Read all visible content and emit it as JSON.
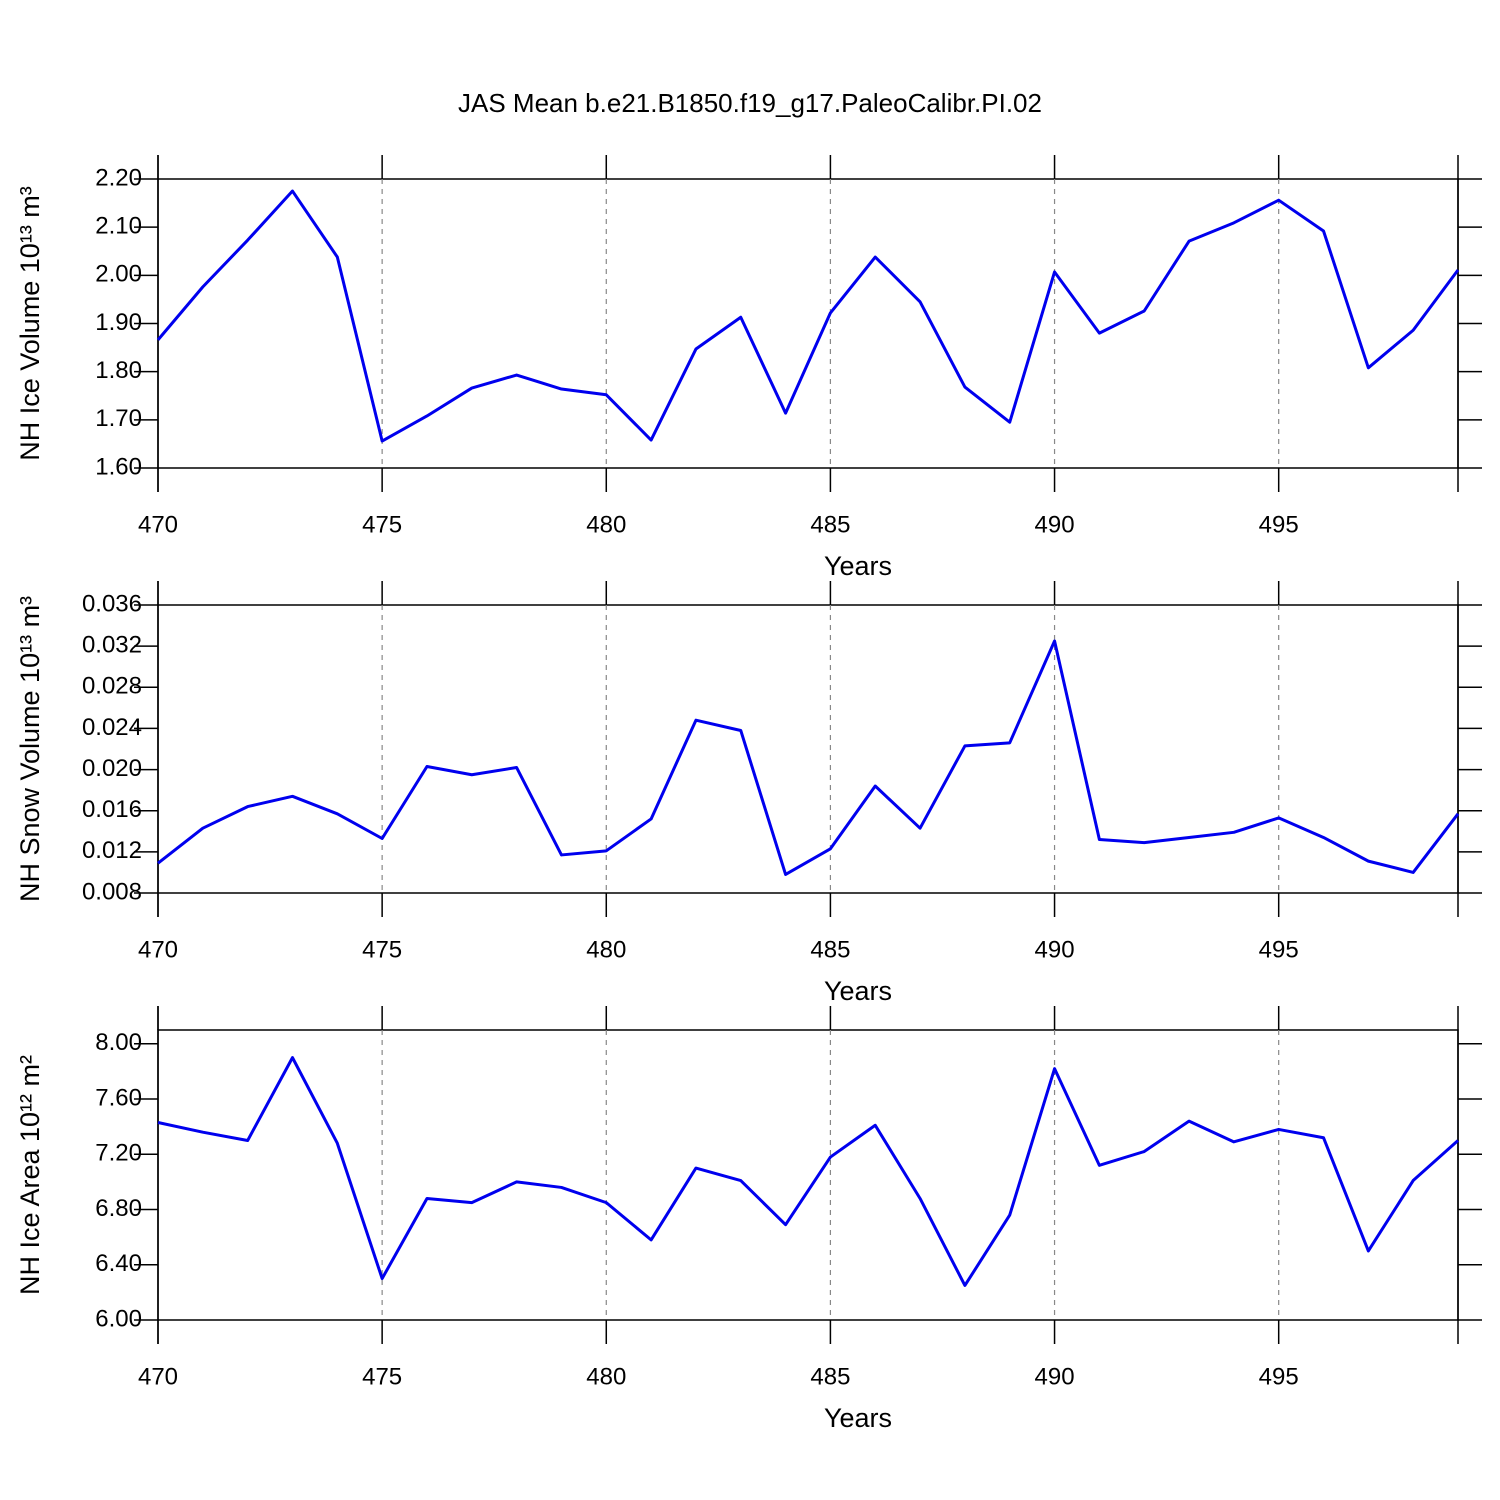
{
  "title": "JAS Mean b.e21.B1850.f19_g17.PaleoCalibr.PI.02",
  "chart_data": [
    {
      "type": "line",
      "xlabel": "Years",
      "ylabel": "NH Ice Volume 10¹³ m³",
      "x": [
        470,
        471,
        472,
        473,
        474,
        475,
        476,
        477,
        478,
        479,
        480,
        481,
        482,
        483,
        484,
        485,
        486,
        487,
        488,
        489,
        490,
        491,
        492,
        493,
        494,
        495,
        496,
        497,
        498,
        499
      ],
      "series": [
        {
          "color": "#0000ee",
          "values": [
            1.866,
            1.976,
            2.073,
            2.175,
            2.038,
            1.656,
            1.708,
            1.766,
            1.793,
            1.764,
            1.752,
            1.658,
            1.847,
            1.913,
            1.714,
            1.922,
            2.038,
            1.945,
            1.768,
            1.695,
            2.007,
            1.88,
            1.926,
            2.071,
            2.109,
            2.156,
            2.092,
            1.808,
            1.886,
            2.011
          ]
        }
      ],
      "xlim": [
        470,
        499
      ],
      "xticks": [
        470,
        475,
        480,
        485,
        490,
        495
      ],
      "ylim": [
        1.6,
        2.2
      ],
      "yticks": [
        {
          "value": 1.6,
          "label": "1.60"
        },
        {
          "value": 1.7,
          "label": "1.70"
        },
        {
          "value": 1.8,
          "label": "1.80"
        },
        {
          "value": 1.9,
          "label": "1.90"
        },
        {
          "value": 2.0,
          "label": "2.00"
        },
        {
          "value": 2.1,
          "label": "2.10"
        },
        {
          "value": 2.2,
          "label": "2.20"
        }
      ],
      "grid": "x"
    },
    {
      "type": "line",
      "xlabel": "Years",
      "ylabel": "NH Snow Volume 10¹³ m³",
      "x": [
        470,
        471,
        472,
        473,
        474,
        475,
        476,
        477,
        478,
        479,
        480,
        481,
        482,
        483,
        484,
        485,
        486,
        487,
        488,
        489,
        490,
        491,
        492,
        493,
        494,
        495,
        496,
        497,
        498,
        499
      ],
      "series": [
        {
          "color": "#0000ee",
          "values": [
            0.0109,
            0.0143,
            0.0164,
            0.0174,
            0.0157,
            0.0133,
            0.0203,
            0.0195,
            0.0202,
            0.0117,
            0.0121,
            0.0152,
            0.0248,
            0.0238,
            0.0098,
            0.0123,
            0.0184,
            0.0143,
            0.0223,
            0.0226,
            0.0325,
            0.0132,
            0.0129,
            0.0134,
            0.0139,
            0.0153,
            0.0134,
            0.0111,
            0.01,
            0.0157
          ]
        }
      ],
      "xlim": [
        470,
        499
      ],
      "xticks": [
        470,
        475,
        480,
        485,
        490,
        495
      ],
      "ylim": [
        0.008,
        0.036
      ],
      "yticks": [
        0.008,
        0.012,
        0.016,
        {
          "value": 0.02,
          "label": "0.020"
        },
        0.024,
        0.028,
        0.032,
        0.036
      ],
      "grid": "x"
    },
    {
      "type": "line",
      "xlabel": "Years",
      "ylabel": "NH Ice Area 10¹² m²",
      "x": [
        470,
        471,
        472,
        473,
        474,
        475,
        476,
        477,
        478,
        479,
        480,
        481,
        482,
        483,
        484,
        485,
        486,
        487,
        488,
        489,
        490,
        491,
        492,
        493,
        494,
        495,
        496,
        497,
        498,
        499
      ],
      "series": [
        {
          "color": "#0000ee",
          "values": [
            7.43,
            7.36,
            7.3,
            7.9,
            7.28,
            6.3,
            6.88,
            6.85,
            7.0,
            6.96,
            6.85,
            6.58,
            7.1,
            7.01,
            6.69,
            7.18,
            7.41,
            6.88,
            6.25,
            6.76,
            7.82,
            7.12,
            7.22,
            7.44,
            7.29,
            7.38,
            7.32,
            6.5,
            7.01,
            7.3
          ]
        }
      ],
      "xlim": [
        470,
        499
      ],
      "xticks": [
        470,
        475,
        480,
        485,
        490,
        495
      ],
      "ylim": [
        6.0,
        8.1
      ],
      "yticks": [
        {
          "value": 6.0,
          "label": "6.00"
        },
        {
          "value": 6.4,
          "label": "6.40"
        },
        {
          "value": 6.8,
          "label": "6.80"
        },
        {
          "value": 7.2,
          "label": "7.20"
        },
        {
          "value": 7.6,
          "label": "7.60"
        },
        {
          "value": 8.0,
          "label": "8.00"
        }
      ],
      "grid": "x"
    }
  ]
}
